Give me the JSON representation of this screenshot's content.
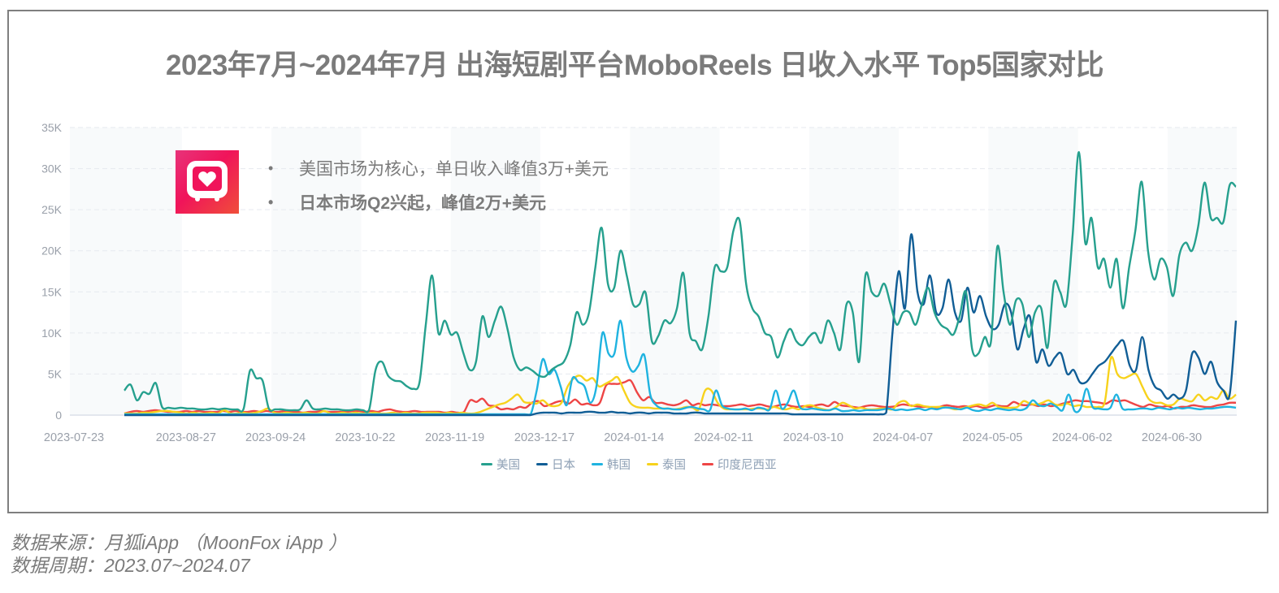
{
  "title": "2023年7月~2024年7月 出海短剧平台MoboReels 日收入水平 Top5国家对比",
  "logo": {
    "name": "MoboReels app icon",
    "colors": [
      "#e8337a",
      "#f0145a",
      "#f04e3a"
    ]
  },
  "annotations": [
    {
      "bullet": "•",
      "text": "美国市场为核心，单日收入峰值3万+美元",
      "bold": false
    },
    {
      "bullet": "•",
      "text": "日本市场Q2兴起，峰值2万+美元",
      "bold": true
    }
  ],
  "legend": [
    {
      "label": "美国",
      "color": "#26a08e"
    },
    {
      "label": "日本",
      "color": "#115e96"
    },
    {
      "label": "韩国",
      "color": "#1fb3e0"
    },
    {
      "label": "泰国",
      "color": "#f7d21c"
    },
    {
      "label": "印度尼西亚",
      "color": "#ee4545"
    }
  ],
  "footer": {
    "source": "数据来源：月狐iApp （MoonFox iApp ）",
    "period": "数据周期：2023.07~2024.07"
  },
  "chart_data": {
    "type": "line",
    "title": "2023年7月~2024年7月 出海短剧平台MoboReels 日收入水平 Top5国家对比",
    "xlabel": "",
    "ylabel": "",
    "ylim": [
      0,
      35000
    ],
    "yticks": [
      "0",
      "5K",
      "10K",
      "15K",
      "20K",
      "25K",
      "30K",
      "35K"
    ],
    "xticks": [
      "2023-07-23",
      "2023-08-27",
      "2023-09-24",
      "2023-10-22",
      "2023-11-19",
      "2023-12-17",
      "2024-01-14",
      "2024-02-11",
      "2024-03-10",
      "2024-04-07",
      "2024-05-05",
      "2024-06-02",
      "2024-06-30"
    ],
    "grid": "horizontal dashed",
    "legend_position": "bottom",
    "x_start": "2023-08-08",
    "x_step_days": 3,
    "series": [
      {
        "name": "美国",
        "color": "#26a08e",
        "values": [
          3000,
          3700,
          1800,
          2800,
          2600,
          3900,
          1000,
          900,
          800,
          900,
          800,
          800,
          700,
          700,
          800,
          700,
          800,
          700,
          700,
          800,
          5400,
          4500,
          4200,
          800,
          700,
          700,
          600,
          600,
          700,
          1800,
          800,
          700,
          800,
          700,
          700,
          600,
          600,
          700,
          600,
          700,
          5500,
          6500,
          4800,
          4200,
          4100,
          3500,
          3200,
          4000,
          11000,
          17000,
          10000,
          11500,
          9800,
          10000,
          7500,
          5500,
          6500,
          12000,
          9500,
          11500,
          13200,
          10500,
          7000,
          5500,
          5800,
          5400,
          4800,
          4700,
          5500,
          6000,
          6500,
          8500,
          12500,
          11000,
          12500,
          18000,
          22800,
          16000,
          15500,
          20000,
          17000,
          13500,
          13500,
          14900,
          9000,
          9600,
          11500,
          11200,
          13000,
          17300,
          10000,
          9000,
          8000,
          12000,
          18000,
          17500,
          18000,
          22500,
          23600,
          16000,
          13000,
          12000,
          10000,
          9500,
          7000,
          9000,
          10500,
          9000,
          8500,
          9500,
          10000,
          8800,
          11500,
          10000,
          8000,
          13500,
          12500,
          6500,
          17000,
          15000,
          14500,
          16000,
          13500,
          11000,
          12500,
          12500,
          11000,
          13500,
          15500,
          12500,
          11000,
          10500,
          9800,
          12000,
          15000,
          8000,
          7500,
          9500,
          9000,
          20500,
          15000,
          11000,
          14000,
          13500,
          9500,
          12500,
          13000,
          8200,
          16000,
          15000,
          13500,
          22000,
          32000,
          21000,
          24000,
          18000,
          19000,
          15500,
          19000,
          13000,
          18000,
          22500,
          28400,
          20000,
          16500,
          19000,
          18000,
          14500,
          19500,
          21000,
          20000,
          23000,
          28300,
          24000,
          24000,
          23500,
          28000,
          27800
        ]
      },
      {
        "name": "日本",
        "color": "#115e96",
        "values": [
          0,
          0,
          0,
          0,
          0,
          0,
          0,
          0,
          0,
          0,
          0,
          0,
          0,
          0,
          0,
          0,
          0,
          0,
          0,
          0,
          0,
          0,
          0,
          0,
          0,
          0,
          0,
          0,
          0,
          0,
          0,
          0,
          0,
          0,
          0,
          0,
          0,
          0,
          0,
          0,
          0,
          0,
          0,
          0,
          0,
          0,
          0,
          0,
          0,
          0,
          0,
          0,
          0,
          0,
          0,
          0,
          0,
          0,
          0,
          0,
          0,
          0,
          0,
          0,
          0,
          0,
          200,
          300,
          300,
          300,
          200,
          300,
          300,
          300,
          400,
          400,
          300,
          300,
          400,
          300,
          300,
          200,
          300,
          300,
          200,
          300,
          300,
          300,
          200,
          200,
          200,
          300,
          300,
          200,
          200,
          200,
          200,
          200,
          200,
          200,
          200,
          200,
          200,
          200,
          200,
          200,
          200,
          100,
          100,
          100,
          100,
          100,
          100,
          100,
          100,
          100,
          100,
          100,
          100,
          100,
          100,
          100,
          300,
          10000,
          17500,
          13000,
          22000,
          15000,
          13500,
          17000,
          12500,
          13000,
          16500,
          12500,
          11500,
          15500,
          12500,
          14500,
          12000,
          10500,
          11000,
          13500,
          12500,
          8000,
          10500,
          12000,
          6500,
          8000,
          6000,
          7000,
          7500,
          5000,
          5500,
          4000,
          4000,
          5000,
          6000,
          6500,
          7500,
          8500,
          9000,
          6000,
          5500,
          9500,
          5500,
          3500,
          3000,
          2000,
          2500,
          2000,
          3000,
          7500,
          7000,
          5000,
          6500,
          4000,
          3000,
          2500,
          11500
        ]
      },
      {
        "name": "韩国",
        "color": "#1fb3e0",
        "values": [
          100,
          100,
          100,
          100,
          100,
          100,
          100,
          100,
          100,
          100,
          100,
          100,
          100,
          100,
          100,
          100,
          100,
          100,
          100,
          100,
          100,
          100,
          100,
          100,
          100,
          100,
          100,
          100,
          100,
          100,
          100,
          100,
          100,
          100,
          100,
          100,
          100,
          100,
          100,
          100,
          100,
          100,
          100,
          100,
          100,
          100,
          100,
          100,
          100,
          100,
          100,
          100,
          100,
          100,
          100,
          100,
          100,
          100,
          100,
          100,
          100,
          100,
          100,
          100,
          100,
          100,
          100,
          100,
          100,
          3000,
          6800,
          5000,
          5500,
          3500,
          1200,
          4500,
          4000,
          3500,
          1500,
          3500,
          10000,
          7500,
          7500,
          11500,
          7000,
          5300,
          6000,
          7300,
          2500,
          1200,
          800,
          800,
          700,
          700,
          900,
          1000,
          800,
          700,
          600,
          3000,
          1200,
          800,
          700,
          700,
          800,
          600,
          900,
          800,
          700,
          3000,
          800,
          1500,
          3000,
          1000,
          700,
          800,
          700,
          600,
          600,
          800,
          500,
          500,
          600,
          500,
          600,
          600,
          600,
          700,
          800,
          600,
          700,
          600,
          700,
          800,
          600,
          800,
          700,
          900,
          900,
          800,
          700,
          900,
          600,
          500,
          700,
          600,
          800,
          700,
          600,
          700,
          600,
          900,
          1800,
          1200,
          1100,
          1400,
          1000,
          600,
          2500,
          500,
          800,
          3200,
          1000,
          800,
          700,
          900,
          2500,
          800,
          700,
          700,
          800,
          800,
          700,
          900,
          800,
          700,
          900,
          800,
          900,
          800,
          700,
          800,
          800,
          900,
          1000,
          1000,
          900
        ]
      },
      {
        "name": "泰国",
        "color": "#f7d21c",
        "values": [
          200,
          200,
          200,
          300,
          300,
          400,
          500,
          500,
          400,
          300,
          200,
          300,
          200,
          200,
          300,
          200,
          600,
          200,
          200,
          300,
          200,
          300,
          500,
          800,
          300,
          200,
          300,
          200,
          200,
          300,
          200,
          200,
          500,
          200,
          200,
          300,
          200,
          300,
          200,
          200,
          300,
          200,
          200,
          300,
          200,
          300,
          200,
          200,
          300,
          300,
          300,
          200,
          300,
          200,
          300,
          200,
          200,
          400,
          700,
          1000,
          1300,
          1500,
          2000,
          2500,
          1600,
          1500,
          1400,
          1800,
          1200,
          1100,
          1500,
          3500,
          4500,
          4800,
          4200,
          4500,
          3500,
          3800,
          4200,
          4600,
          3000,
          1500,
          1000,
          900,
          900,
          800,
          800,
          800,
          700,
          800,
          1000,
          900,
          700,
          3000,
          3000,
          1500,
          800,
          700,
          700,
          700,
          700,
          800,
          800,
          700,
          1000,
          800,
          700,
          900,
          700,
          1100,
          1200,
          900,
          700,
          600,
          1000,
          1500,
          1200,
          800,
          900,
          700,
          700,
          800,
          800,
          700,
          1500,
          1700,
          1100,
          1300,
          1100,
          1000,
          1000,
          1000,
          900,
          700,
          800,
          1000,
          1200,
          1300,
          1100,
          1500,
          1000,
          900,
          900,
          1000,
          1700,
          1400,
          1300,
          1500,
          1800,
          1300,
          1200,
          1400,
          1100,
          1200,
          1000,
          1000,
          1000,
          1600,
          7000,
          5000,
          4500,
          4800,
          5000,
          3500,
          2000,
          1500,
          1500,
          1200,
          1300,
          2000,
          1800,
          1700,
          2500,
          1800,
          2200,
          2000,
          3000,
          2000,
          2500
        ]
      },
      {
        "name": "印度尼西亚",
        "color": "#ee4545",
        "values": [
          200,
          400,
          500,
          400,
          500,
          600,
          500,
          400,
          400,
          400,
          500,
          400,
          500,
          400,
          400,
          400,
          500,
          400,
          500,
          400,
          400,
          500,
          400,
          500,
          400,
          400,
          500,
          400,
          400,
          300,
          400,
          400,
          500,
          400,
          400,
          400,
          400,
          500,
          500,
          400,
          500,
          400,
          600,
          700,
          500,
          400,
          400,
          500,
          400,
          400,
          400,
          400,
          300,
          400,
          300,
          400,
          1800,
          1600,
          2000,
          1200,
          1100,
          700,
          800,
          700,
          1000,
          900,
          1500,
          1700,
          1100,
          1300,
          1600,
          1700,
          1400,
          1900,
          1300,
          1400,
          1200,
          1500,
          3600,
          3800,
          3800,
          4000,
          4200,
          2800,
          1800,
          2200,
          1500,
          1500,
          1300,
          1200,
          1400,
          1800,
          1200,
          1400,
          1200,
          1300,
          1200,
          1100,
          1100,
          1200,
          1300,
          1100,
          1200,
          1300,
          1100,
          1000,
          1200,
          1300,
          1100,
          1000,
          1100,
          1000,
          1200,
          1300,
          1100,
          1600,
          1200,
          1100,
          1000,
          900,
          1100,
          1200,
          1100,
          1000,
          1000,
          1100,
          1300,
          1200,
          1100,
          1000,
          1000,
          900,
          1000,
          1200,
          1100,
          1000,
          1100,
          1000,
          1100,
          900,
          1000,
          1200,
          1100,
          1100,
          1600,
          1300,
          1200,
          1300,
          1100,
          1300,
          1100,
          1200,
          1400,
          1600,
          1800,
          1700,
          1700,
          1600,
          1500,
          1400,
          1800,
          1700,
          1800,
          1500,
          1200,
          1000,
          1300,
          1100,
          1000,
          1100,
          800,
          1000,
          1000,
          1200,
          1100,
          1000,
          1000,
          1200,
          1300,
          1500,
          1500
        ]
      }
    ]
  }
}
